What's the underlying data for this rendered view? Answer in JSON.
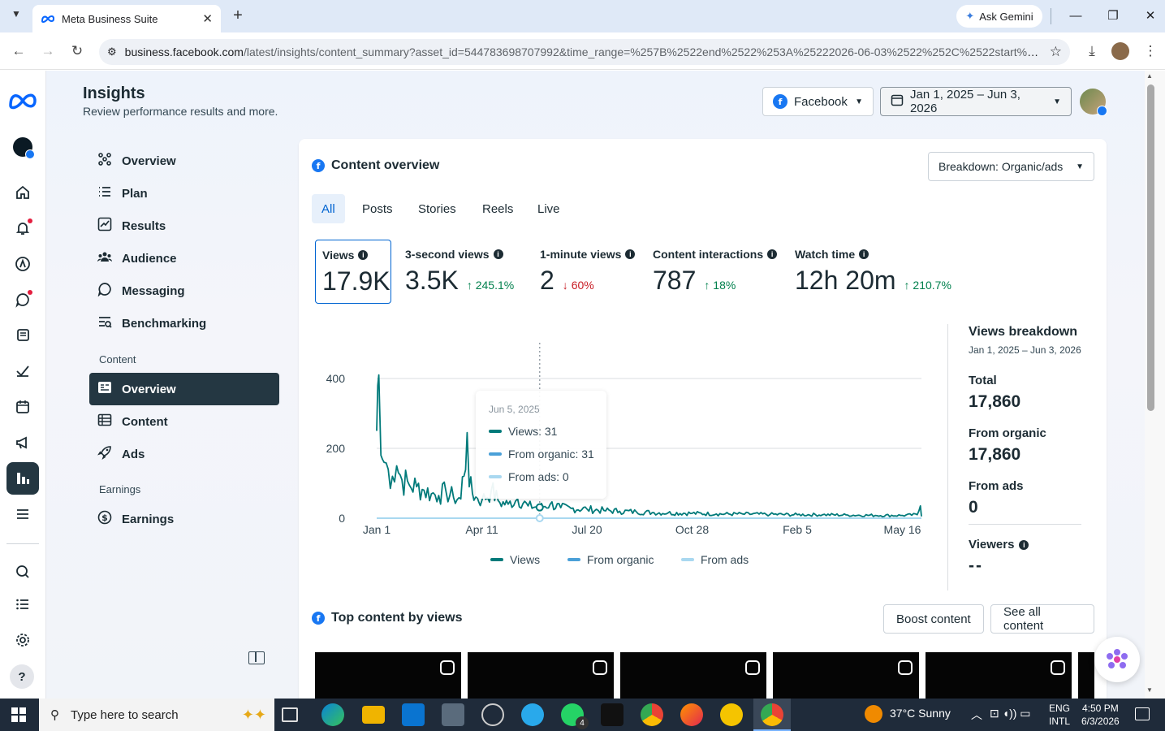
{
  "browser": {
    "tab_title": "Meta Business Suite",
    "gemini_label": "Ask Gemini",
    "url_host": "business.facebook.com",
    "url_path": "/latest/insights/content_summary?asset_id=544783698707992&time_range=%257B%2522end%2522%253A%25222026-06-03%2522%252C%2522start%25..."
  },
  "header": {
    "title": "Insights",
    "subtitle": "Review performance results and more.",
    "platform": "Facebook",
    "date_range": "Jan 1, 2025 – Jun 3, 2026"
  },
  "nav": {
    "items": [
      {
        "label": "Overview",
        "icon": "overview-icon"
      },
      {
        "label": "Plan",
        "icon": "plan-icon"
      },
      {
        "label": "Results",
        "icon": "results-icon"
      },
      {
        "label": "Audience",
        "icon": "audience-icon"
      },
      {
        "label": "Messaging",
        "icon": "messaging-icon"
      },
      {
        "label": "Benchmarking",
        "icon": "benchmarking-icon"
      }
    ],
    "content_section": "Content",
    "content_items": [
      {
        "label": "Overview",
        "icon": "content-overview-icon",
        "active": true
      },
      {
        "label": "Content",
        "icon": "content-table-icon"
      },
      {
        "label": "Ads",
        "icon": "ads-rocket-icon"
      }
    ],
    "earnings_section": "Earnings",
    "earnings_items": [
      {
        "label": "Earnings",
        "icon": "dollar-icon"
      }
    ]
  },
  "overview": {
    "title": "Content overview",
    "breakdown": "Breakdown: Organic/ads",
    "tabs": [
      "All",
      "Posts",
      "Stories",
      "Reels",
      "Live"
    ],
    "metrics": [
      {
        "label": "Views",
        "value": "17.9K",
        "change": ""
      },
      {
        "label": "3-second views",
        "value": "3.5K",
        "change": "245.1%",
        "dir": "up"
      },
      {
        "label": "1-minute views",
        "value": "2",
        "change": "60%",
        "dir": "down"
      },
      {
        "label": "Content interactions",
        "value": "787",
        "change": "18%",
        "dir": "up"
      },
      {
        "label": "Watch time",
        "value": "12h 20m",
        "change": "210.7%",
        "dir": "up"
      }
    ]
  },
  "chart_data": {
    "type": "line",
    "x_ticks": [
      "Jan 1",
      "Apr 11",
      "Jul 20",
      "Oct 28",
      "Feb 5",
      "May 16"
    ],
    "y_ticks": [
      "0",
      "200",
      "400"
    ],
    "ylim": [
      0,
      400
    ],
    "x_range": [
      "2025-01-01",
      "2026-06-03"
    ],
    "series": [
      {
        "name": "Views",
        "color": "#007a7a",
        "points": [
          [
            "2025-01-01",
            250
          ],
          [
            "2025-01-02",
            380
          ],
          [
            "2025-01-03",
            410
          ],
          [
            "2025-01-05",
            180
          ],
          [
            "2025-01-08",
            160
          ],
          [
            "2025-01-12",
            140
          ],
          [
            "2025-01-16",
            120
          ],
          [
            "2025-01-20",
            150
          ],
          [
            "2025-01-25",
            110
          ],
          [
            "2025-02-01",
            95
          ],
          [
            "2025-02-08",
            90
          ],
          [
            "2025-02-15",
            80
          ],
          [
            "2025-02-22",
            70
          ],
          [
            "2025-03-01",
            65
          ],
          [
            "2025-03-08",
            75
          ],
          [
            "2025-03-15",
            60
          ],
          [
            "2025-03-22",
            55
          ],
          [
            "2025-03-28",
            245
          ],
          [
            "2025-03-30",
            90
          ],
          [
            "2025-04-05",
            60
          ],
          [
            "2025-04-11",
            50
          ],
          [
            "2025-04-20",
            80
          ],
          [
            "2025-04-28",
            45
          ],
          [
            "2025-05-06",
            40
          ],
          [
            "2025-05-15",
            55
          ],
          [
            "2025-05-25",
            35
          ],
          [
            "2025-06-05",
            31
          ],
          [
            "2025-06-15",
            40
          ],
          [
            "2025-06-25",
            30
          ],
          [
            "2025-07-05",
            28
          ],
          [
            "2025-07-20",
            26
          ],
          [
            "2025-08-05",
            22
          ],
          [
            "2025-08-20",
            20
          ],
          [
            "2025-09-05",
            18
          ],
          [
            "2025-09-20",
            16
          ],
          [
            "2025-10-05",
            15
          ],
          [
            "2025-10-28",
            14
          ],
          [
            "2025-11-20",
            12
          ],
          [
            "2025-12-15",
            12
          ],
          [
            "2026-01-10",
            11
          ],
          [
            "2026-02-05",
            10
          ],
          [
            "2026-03-01",
            10
          ],
          [
            "2026-03-25",
            9
          ],
          [
            "2026-04-20",
            8
          ],
          [
            "2026-05-16",
            8
          ],
          [
            "2026-05-30",
            10
          ],
          [
            "2026-06-02",
            35
          ],
          [
            "2026-06-03",
            5
          ]
        ]
      },
      {
        "name": "From organic",
        "color": "#4aa0d8",
        "points": []
      },
      {
        "name": "From ads",
        "color": "#a9d8f0",
        "points": []
      }
    ],
    "tooltip": {
      "date": "Jun 5, 2025",
      "rows": [
        "Views: 31",
        "From organic: 31",
        "From ads: 0"
      ]
    }
  },
  "breakdown_panel": {
    "title": "Views breakdown",
    "range": "Jan 1, 2025 – Jun 3, 2026",
    "total_label": "Total",
    "total_value": "17,860",
    "organic_label": "From organic",
    "organic_value": "17,860",
    "ads_label": "From ads",
    "ads_value": "0",
    "viewers_label": "Viewers",
    "viewers_value": "--"
  },
  "top_content": {
    "title": "Top content by views",
    "boost": "Boost content",
    "see_all": "See all content"
  },
  "taskbar": {
    "search_placeholder": "Type here to search",
    "weather": "37°C  Sunny",
    "lang1": "ENG",
    "lang2": "INTL",
    "time": "4:50 PM",
    "date": "6/3/2026",
    "whatsapp_badge": "4"
  }
}
